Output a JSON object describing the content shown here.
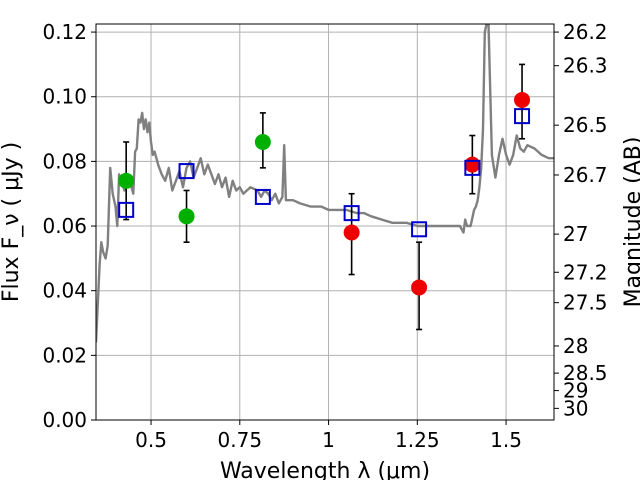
{
  "chart_data": {
    "type": "scatter",
    "title": "",
    "xlabel": "Wavelength  λ (μm)",
    "ylabel": "Flux  F_ν  ( μJy )",
    "y2label": "Magnitude (AB)",
    "xlim": [
      0.345,
      1.635
    ],
    "ylim": [
      0.0,
      0.1225
    ],
    "grid": true,
    "x_ticks": [
      0.5,
      0.75,
      1.0,
      1.25,
      1.5
    ],
    "x_tick_labels": [
      "0.5",
      "0.75",
      "1",
      "1.25",
      "1.5"
    ],
    "y_ticks": [
      0.0,
      0.02,
      0.04,
      0.06,
      0.08,
      0.1,
      0.12
    ],
    "y_tick_labels": [
      "0.00",
      "0.02",
      "0.04",
      "0.06",
      "0.08",
      "0.10",
      "0.12"
    ],
    "y2_ticks": [
      {
        "flux": 0.12,
        "label": "26.2"
      },
      {
        "flux": 0.1096,
        "label": "26.3"
      },
      {
        "flux": 0.0912,
        "label": "26.5"
      },
      {
        "flux": 0.0758,
        "label": "26.7"
      },
      {
        "flux": 0.0575,
        "label": "27"
      },
      {
        "flux": 0.0457,
        "label": "27.2"
      },
      {
        "flux": 0.0363,
        "label": "27.5"
      },
      {
        "flux": 0.0229,
        "label": "28"
      },
      {
        "flux": 0.0145,
        "label": "28.5"
      },
      {
        "flux": 0.0091,
        "label": "29"
      },
      {
        "flux": 0.0036,
        "label": "30"
      }
    ],
    "series": [
      {
        "color": "#808080",
        "x": [
          0.345,
          0.355,
          0.36,
          0.365,
          0.372,
          0.378,
          0.385,
          0.392,
          0.4,
          0.405,
          0.41,
          0.418,
          0.425,
          0.432,
          0.44,
          0.445,
          0.45,
          0.455,
          0.46,
          0.465,
          0.47,
          0.475,
          0.48,
          0.485,
          0.49,
          0.495,
          0.5,
          0.505,
          0.51,
          0.515,
          0.52,
          0.53,
          0.54,
          0.55,
          0.56,
          0.57,
          0.58,
          0.59,
          0.6,
          0.61,
          0.62,
          0.63,
          0.64,
          0.65,
          0.66,
          0.67,
          0.68,
          0.69,
          0.7,
          0.71,
          0.72,
          0.73,
          0.74,
          0.75,
          0.76,
          0.78,
          0.8,
          0.81,
          0.82,
          0.83,
          0.84,
          0.85,
          0.86,
          0.87,
          0.875,
          0.88,
          0.89,
          0.9,
          0.92,
          0.95,
          0.98,
          1.0,
          1.02,
          1.05,
          1.08,
          1.1,
          1.12,
          1.15,
          1.18,
          1.2,
          1.22,
          1.25,
          1.28,
          1.3,
          1.33,
          1.35,
          1.37,
          1.38,
          1.385,
          1.39,
          1.4,
          1.41,
          1.415,
          1.42,
          1.425,
          1.43,
          1.435,
          1.44,
          1.45,
          1.46,
          1.47,
          1.48,
          1.49,
          1.5,
          1.51,
          1.52,
          1.53,
          1.54,
          1.55,
          1.56,
          1.58,
          1.6,
          1.62,
          1.635
        ],
        "y": [
          0.024,
          0.048,
          0.055,
          0.052,
          0.05,
          0.054,
          0.078,
          0.07,
          0.066,
          0.06,
          0.076,
          0.074,
          0.071,
          0.073,
          0.075,
          0.072,
          0.07,
          0.083,
          0.084,
          0.093,
          0.092,
          0.095,
          0.09,
          0.093,
          0.089,
          0.092,
          0.086,
          0.082,
          0.083,
          0.081,
          0.079,
          0.076,
          0.074,
          0.078,
          0.071,
          0.074,
          0.077,
          0.072,
          0.078,
          0.08,
          0.075,
          0.078,
          0.081,
          0.076,
          0.079,
          0.076,
          0.073,
          0.076,
          0.072,
          0.075,
          0.069,
          0.074,
          0.071,
          0.072,
          0.07,
          0.072,
          0.071,
          0.069,
          0.071,
          0.07,
          0.068,
          0.07,
          0.067,
          0.069,
          0.085,
          0.068,
          0.068,
          0.068,
          0.067,
          0.066,
          0.066,
          0.065,
          0.065,
          0.065,
          0.064,
          0.064,
          0.063,
          0.062,
          0.061,
          0.061,
          0.061,
          0.06,
          0.06,
          0.06,
          0.06,
          0.06,
          0.06,
          0.058,
          0.062,
          0.06,
          0.06,
          0.065,
          0.066,
          0.068,
          0.072,
          0.078,
          0.09,
          0.12,
          0.125,
          0.082,
          0.075,
          0.082,
          0.087,
          0.082,
          0.079,
          0.082,
          0.088,
          0.084,
          0.083,
          0.085,
          0.084,
          0.082,
          0.081,
          0.081
        ]
      },
      {
        "marker": "filled-circle",
        "color": "#00b000",
        "points": [
          {
            "x": 0.43,
            "y": 0.074,
            "err": null
          },
          {
            "x": 0.6,
            "y": 0.063,
            "err": [
              0.055,
              0.071
            ]
          },
          {
            "x": 0.815,
            "y": 0.086,
            "err": [
              0.078,
              0.095
            ]
          }
        ]
      },
      {
        "marker": "filled-circle",
        "color": "#ee0000",
        "points": [
          {
            "x": 1.065,
            "y": 0.058,
            "err": [
              0.045,
              0.07
            ]
          },
          {
            "x": 1.255,
            "y": 0.041,
            "err": [
              0.028,
              0.055
            ]
          },
          {
            "x": 1.405,
            "y": 0.079,
            "err": [
              0.07,
              0.088
            ]
          },
          {
            "x": 1.545,
            "y": 0.099,
            "err": [
              0.087,
              0.11
            ]
          }
        ]
      },
      {
        "marker": "open-square",
        "color": "#0000cc",
        "points": [
          {
            "x": 0.43,
            "y": 0.065
          },
          {
            "x": 0.6,
            "y": 0.077
          },
          {
            "x": 0.815,
            "y": 0.069
          },
          {
            "x": 1.065,
            "y": 0.064
          },
          {
            "x": 1.255,
            "y": 0.059
          },
          {
            "x": 1.405,
            "y": 0.078
          },
          {
            "x": 1.545,
            "y": 0.094
          }
        ]
      }
    ],
    "extra_errorbars": [
      {
        "x": 0.43,
        "err": [
          0.062,
          0.086
        ]
      }
    ]
  }
}
